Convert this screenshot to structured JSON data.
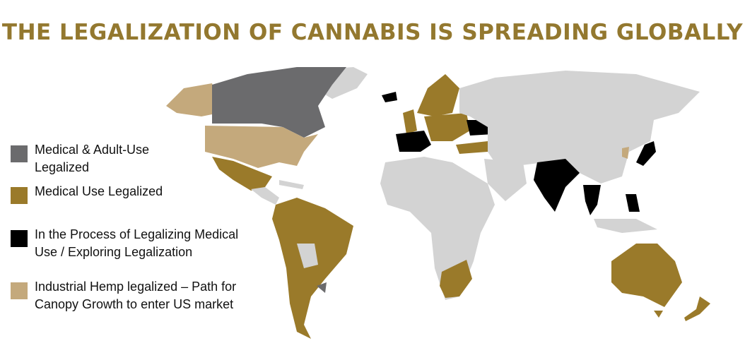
{
  "title": "THE LEGALIZATION OF CANNABIS IS SPREADING GLOBALLY",
  "colors": {
    "title": "#93782f",
    "medical_adult_use": "#6b6b6d",
    "medical_use": "#9a7a2a",
    "in_process": "#000000",
    "industrial_hemp": "#c4a97c",
    "no_status": "#d3d3d3"
  },
  "legend": [
    {
      "label": "Medical & Adult-Use Legalized",
      "color_key": "medical_adult_use"
    },
    {
      "label": "Medical Use Legalized",
      "color_key": "medical_use"
    },
    {
      "label": "In the Process of Legalizing Medical Use / Exploring Legalization",
      "color_key": "in_process"
    },
    {
      "label": "Industrial Hemp legalized – Path for Canopy Growth to enter US market",
      "color_key": "industrial_hemp"
    }
  ]
}
